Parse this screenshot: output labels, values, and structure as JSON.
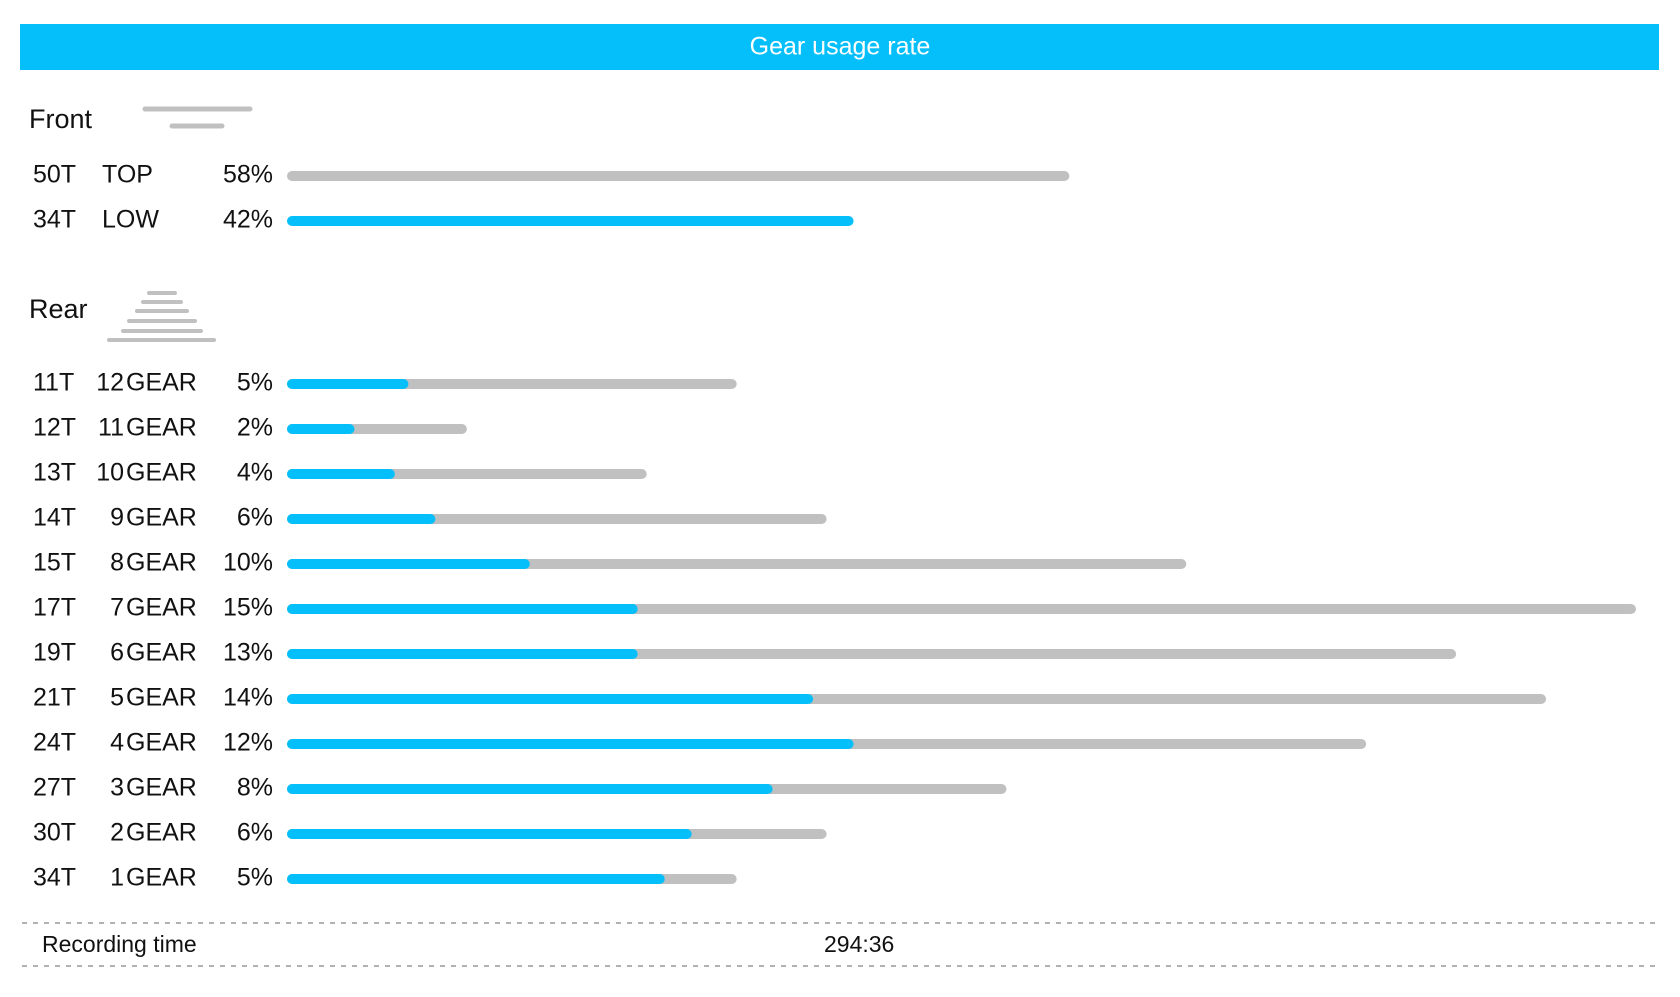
{
  "header": {
    "title": "Gear usage rate"
  },
  "front": {
    "title": "Front",
    "xlim": [
      0,
      100
    ],
    "rows": [
      {
        "teeth": "50T",
        "name": "TOP",
        "usage": 58,
        "usage_label": "58%",
        "active": false
      },
      {
        "teeth": "34T",
        "name": "LOW",
        "usage": 42,
        "usage_label": "42%",
        "active": true
      }
    ]
  },
  "rear": {
    "title": "Rear",
    "unit": "GEAR",
    "xlim": [
      0,
      15
    ],
    "position_xlim": [
      0,
      100
    ],
    "rows": [
      {
        "teeth": "11T",
        "gear": "12",
        "usage": 5,
        "usage_label": "5%",
        "position": 9
      },
      {
        "teeth": "12T",
        "gear": "11",
        "usage": 2,
        "usage_label": "2%",
        "position": 5
      },
      {
        "teeth": "13T",
        "gear": "10",
        "usage": 4,
        "usage_label": "4%",
        "position": 8
      },
      {
        "teeth": "14T",
        "gear": "9",
        "usage": 6,
        "usage_label": "6%",
        "position": 11
      },
      {
        "teeth": "15T",
        "gear": "8",
        "usage": 10,
        "usage_label": "10%",
        "position": 18
      },
      {
        "teeth": "17T",
        "gear": "7",
        "usage": 15,
        "usage_label": "15%",
        "position": 26
      },
      {
        "teeth": "19T",
        "gear": "6",
        "usage": 13,
        "usage_label": "13%",
        "position": 26
      },
      {
        "teeth": "21T",
        "gear": "5",
        "usage": 14,
        "usage_label": "14%",
        "position": 39
      },
      {
        "teeth": "24T",
        "gear": "4",
        "usage": 12,
        "usage_label": "12%",
        "position": 42
      },
      {
        "teeth": "27T",
        "gear": "3",
        "usage": 8,
        "usage_label": "8%",
        "position": 36
      },
      {
        "teeth": "30T",
        "gear": "2",
        "usage": 6,
        "usage_label": "6%",
        "position": 30
      },
      {
        "teeth": "34T",
        "gear": "1",
        "usage": 5,
        "usage_label": "5%",
        "position": 28
      }
    ]
  },
  "footer": {
    "label": "Recording time",
    "value": "294:36"
  },
  "colors": {
    "accent": "#05bffb",
    "track": "#c0c0c0"
  }
}
